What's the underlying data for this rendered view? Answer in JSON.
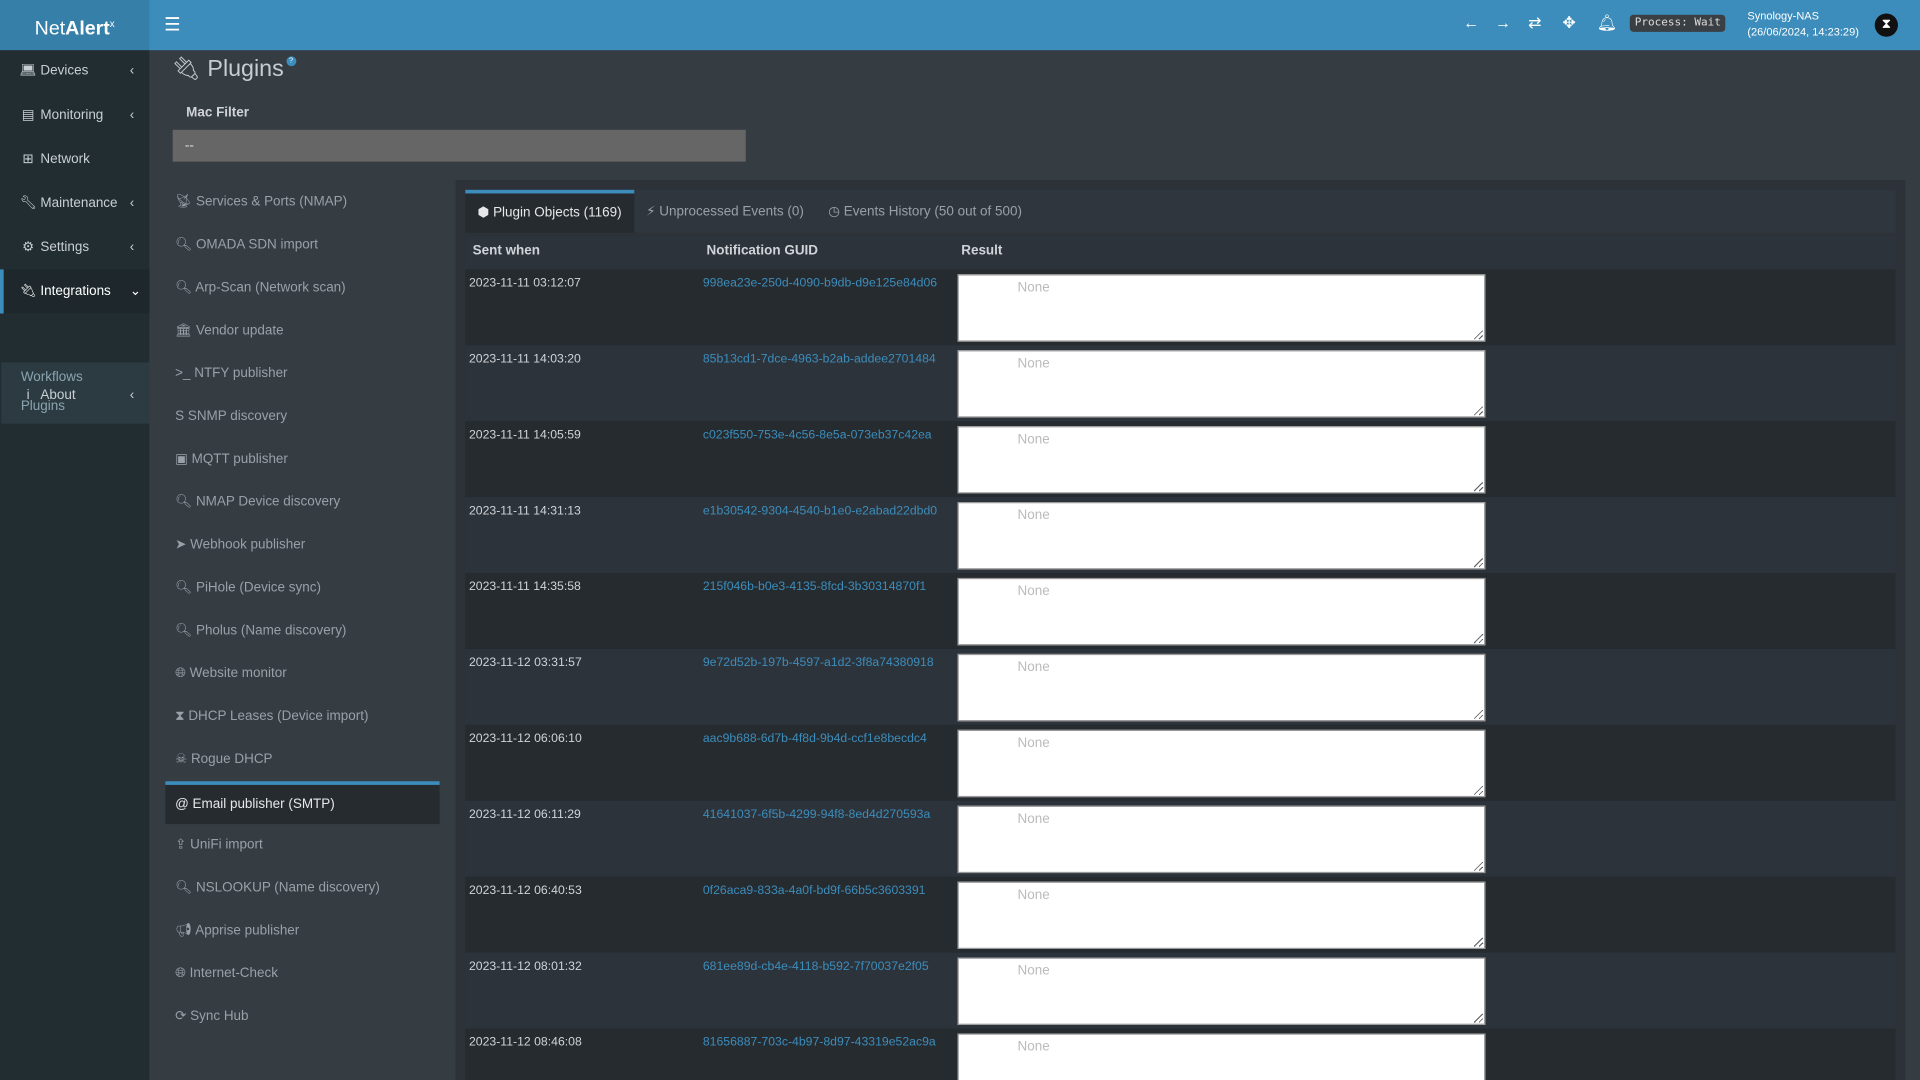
{
  "app": {
    "logo_text": "Net",
    "logo_bold": "Alert",
    "logo_sup": "x"
  },
  "topbar": {
    "process_status": "Process: Wait",
    "host_name": "Synology-NAS",
    "host_time": "(26/06/2024, 14:23:29)",
    "icons": [
      "menu-icon",
      "arrow-left-icon",
      "arrow-right-icon",
      "refresh-icon",
      "arrows-move-icon",
      "bell-icon",
      "user-avatar"
    ]
  },
  "sidebar": {
    "items": [
      {
        "label": "Devices",
        "icon": "laptop-icon"
      },
      {
        "label": "Monitoring",
        "icon": "chart-icon"
      },
      {
        "label": "Network",
        "icon": "sitemap-icon"
      },
      {
        "label": "Maintenance",
        "icon": "wrench-icon"
      },
      {
        "label": "Settings",
        "icon": "gear-icon"
      },
      {
        "label": "Integrations",
        "icon": "plug-icon"
      },
      {
        "label": "About",
        "icon": "info-icon"
      }
    ],
    "sub_items": [
      {
        "label": "Workflows"
      },
      {
        "label": "Plugins"
      }
    ]
  },
  "page": {
    "title": "Plugins",
    "help": "?"
  },
  "mac_filter": {
    "label": "Mac Filter",
    "value": "--"
  },
  "plugins": [
    {
      "label": "Services & Ports (NMAP)",
      "icon": "satellite-dish-icon"
    },
    {
      "label": "OMADA SDN import",
      "icon": "search-icon"
    },
    {
      "label": "Arp-Scan (Network scan)",
      "icon": "search-icon"
    },
    {
      "label": "Vendor update",
      "icon": "bank-icon"
    },
    {
      "label": "NTFY publisher",
      "icon": "terminal-icon"
    },
    {
      "label": "SNMP discovery",
      "icon": "s-icon"
    },
    {
      "label": "MQTT publisher",
      "icon": "square-icon"
    },
    {
      "label": "NMAP Device discovery",
      "icon": "search-icon"
    },
    {
      "label": "Webhook publisher",
      "icon": "paper-plane-icon"
    },
    {
      "label": "PiHole (Device sync)",
      "icon": "search-icon"
    },
    {
      "label": "Pholus (Name discovery)",
      "icon": "search-icon"
    },
    {
      "label": "Website monitor",
      "icon": "globe-icon"
    },
    {
      "label": "DHCP Leases (Device import)",
      "icon": "hourglass-icon"
    },
    {
      "label": "Rogue DHCP",
      "icon": "skull-icon"
    },
    {
      "label": "Email publisher (SMTP)",
      "icon": "at-icon",
      "active": true
    },
    {
      "label": "UniFi import",
      "icon": "upload-icon"
    },
    {
      "label": "NSLOOKUP (Name discovery)",
      "icon": "search-icon"
    },
    {
      "label": "Apprise publisher",
      "icon": "bullhorn-icon"
    },
    {
      "label": "Internet-Check",
      "icon": "globe-icon"
    },
    {
      "label": "Sync Hub",
      "icon": "sync-icon"
    }
  ],
  "tabs": [
    {
      "label": "Plugin Objects (1169)",
      "icon": "cube-icon"
    },
    {
      "label": "Unprocessed Events (0)",
      "icon": "bolt-icon"
    },
    {
      "label": "Events History (50 out of 500)",
      "icon": "clock-icon"
    }
  ],
  "table": {
    "columns": [
      "Sent when",
      "Notification GUID",
      "Result"
    ],
    "rows": [
      {
        "sent": "2023-11-11 03:12:07",
        "guid": "998ea23e-250d-4090-b9db-d9e125e84d06",
        "result": "None"
      },
      {
        "sent": "2023-11-11 14:03:20",
        "guid": "85b13cd1-7dce-4963-b2ab-addee2701484",
        "result": "None"
      },
      {
        "sent": "2023-11-11 14:05:59",
        "guid": "c023f550-753e-4c56-8e5a-073eb37c42ea",
        "result": "None"
      },
      {
        "sent": "2023-11-11 14:31:13",
        "guid": "e1b30542-9304-4540-b1e0-e2abad22dbd0",
        "result": "None"
      },
      {
        "sent": "2023-11-11 14:35:58",
        "guid": "215f046b-b0e3-4135-8fcd-3b30314870f1",
        "result": "None"
      },
      {
        "sent": "2023-11-12 03:31:57",
        "guid": "9e72d52b-197b-4597-a1d2-3f8a74380918",
        "result": "None"
      },
      {
        "sent": "2023-11-12 06:06:10",
        "guid": "aac9b688-6d7b-4f8d-9b4d-ccf1e8becdc4",
        "result": "None"
      },
      {
        "sent": "2023-11-12 06:11:29",
        "guid": "41641037-6f5b-4299-94f8-8ed4d270593a",
        "result": "None"
      },
      {
        "sent": "2023-11-12 06:40:53",
        "guid": "0f26aca9-833a-4a0f-bd9f-66b5c3603391",
        "result": "None"
      },
      {
        "sent": "2023-11-12 08:01:32",
        "guid": "681ee89d-cb4e-4118-b592-7f70037e2f05",
        "result": "None"
      },
      {
        "sent": "2023-11-12 08:46:08",
        "guid": "81656887-703c-4b97-8d97-43319e52ac9a",
        "result": "None"
      }
    ]
  },
  "colors": {
    "accent": "#3c8dbc",
    "sidebar": "#222d32",
    "content": "#353c42"
  }
}
